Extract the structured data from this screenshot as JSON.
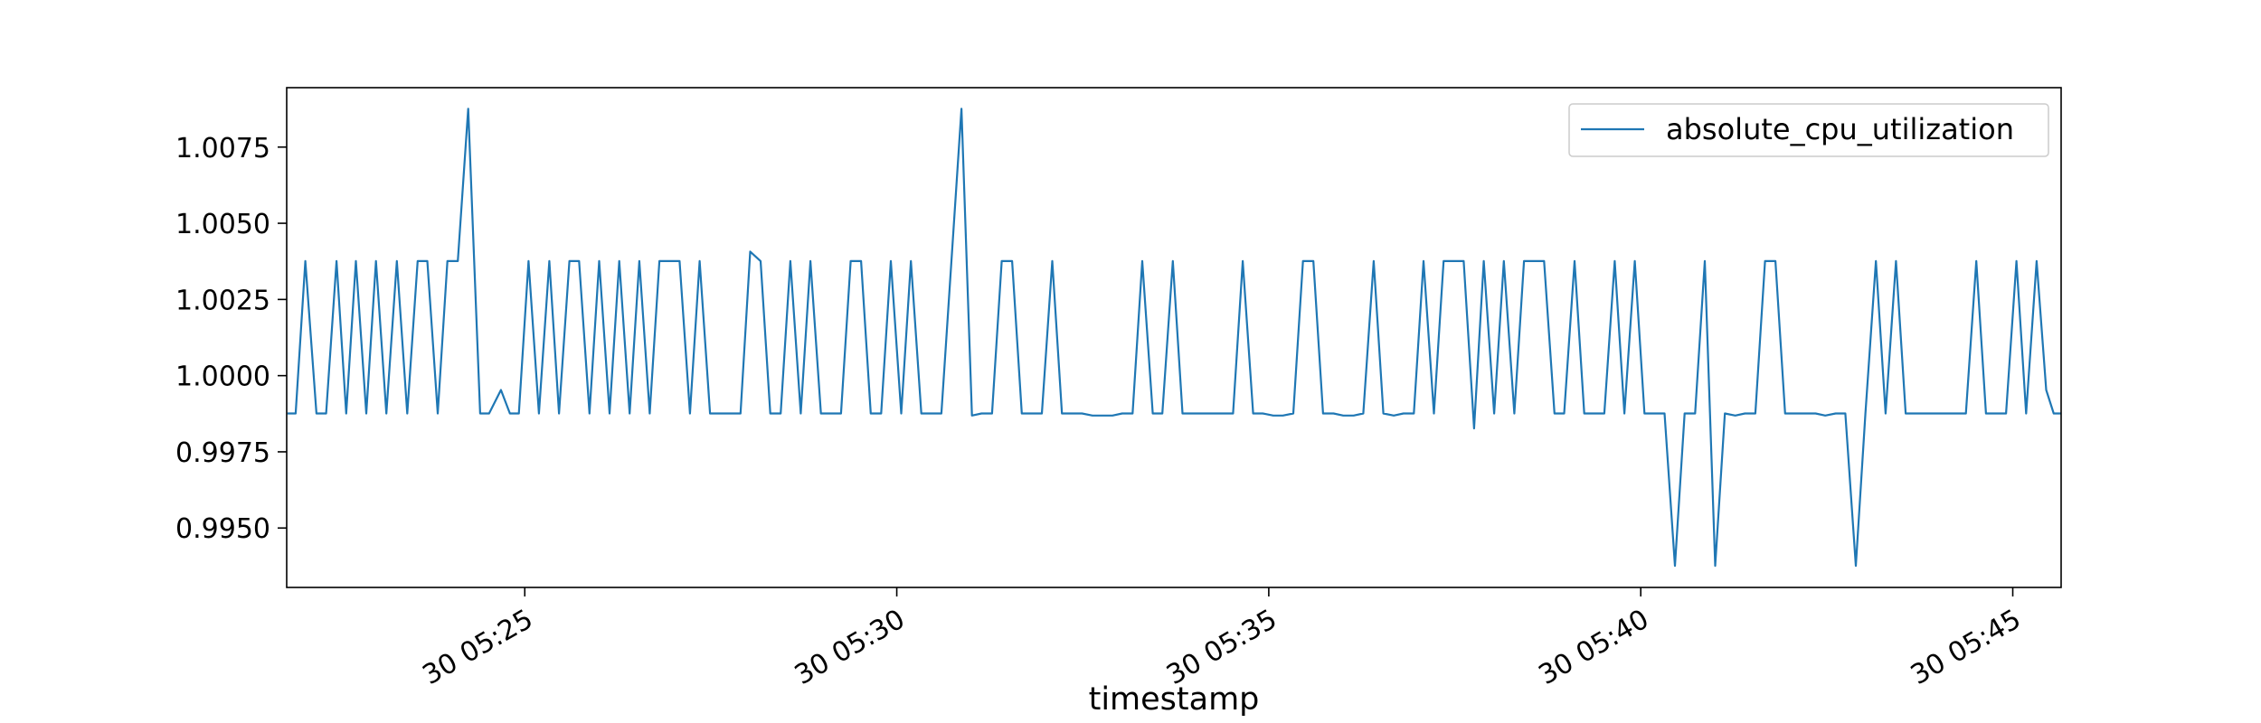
{
  "chart_data": {
    "type": "line",
    "title": "",
    "xlabel": "timestamp",
    "ylabel": "",
    "grid": false,
    "legend_position": "top-right",
    "x_tick_labels": [
      "30 05:25",
      "30 05:30",
      "30 05:35",
      "30 05:40",
      "30 05:45"
    ],
    "x_tick_minutes": [
      25,
      30,
      35,
      40,
      45
    ],
    "y_tick_labels": [
      "0.9950",
      "0.9975",
      "1.0000",
      "1.0025",
      "1.0050",
      "1.0075"
    ],
    "y_tick_values": [
      0.995,
      0.9975,
      1.0,
      1.0025,
      1.005,
      1.0075
    ],
    "xlim_minutes": [
      21.8,
      45.65
    ],
    "ylim": [
      0.99305,
      1.00945
    ],
    "series": [
      {
        "name": "absolute_cpu_utilization",
        "color": "#1f77b4",
        "points": [
          [
            21.81,
            0.99876
          ],
          [
            21.92,
            0.99876
          ],
          [
            22.05,
            1.00376
          ],
          [
            22.2,
            0.99876
          ],
          [
            22.33,
            0.99876
          ],
          [
            22.47,
            1.00376
          ],
          [
            22.6,
            0.99876
          ],
          [
            22.73,
            1.00376
          ],
          [
            22.87,
            0.99876
          ],
          [
            23.0,
            1.00376
          ],
          [
            23.14,
            0.99876
          ],
          [
            23.28,
            1.00376
          ],
          [
            23.42,
            0.99876
          ],
          [
            23.56,
            1.00376
          ],
          [
            23.69,
            1.00376
          ],
          [
            23.83,
            0.99876
          ],
          [
            23.96,
            1.00376
          ],
          [
            24.1,
            1.00376
          ],
          [
            24.24,
            1.00876
          ],
          [
            24.4,
            0.99876
          ],
          [
            24.52,
            0.99876
          ],
          [
            24.68,
            0.99953
          ],
          [
            24.8,
            0.99876
          ],
          [
            24.92,
            0.99876
          ],
          [
            25.05,
            1.00376
          ],
          [
            25.19,
            0.99876
          ],
          [
            25.33,
            1.00376
          ],
          [
            25.46,
            0.99876
          ],
          [
            25.6,
            1.00376
          ],
          [
            25.73,
            1.00376
          ],
          [
            25.87,
            0.99876
          ],
          [
            26.0,
            1.00376
          ],
          [
            26.14,
            0.99876
          ],
          [
            26.27,
            1.00376
          ],
          [
            26.41,
            0.99876
          ],
          [
            26.54,
            1.00376
          ],
          [
            26.68,
            0.99876
          ],
          [
            26.81,
            1.00376
          ],
          [
            26.95,
            1.00376
          ],
          [
            27.08,
            1.00376
          ],
          [
            27.22,
            0.99876
          ],
          [
            27.35,
            1.00376
          ],
          [
            27.49,
            0.99876
          ],
          [
            27.63,
            0.99876
          ],
          [
            27.76,
            0.99876
          ],
          [
            27.9,
            0.99876
          ],
          [
            28.03,
            1.00407
          ],
          [
            28.17,
            1.00376
          ],
          [
            28.3,
            0.99876
          ],
          [
            28.44,
            0.99876
          ],
          [
            28.57,
            1.00376
          ],
          [
            28.71,
            0.99876
          ],
          [
            28.84,
            1.00376
          ],
          [
            28.98,
            0.99876
          ],
          [
            29.11,
            0.99876
          ],
          [
            29.25,
            0.99876
          ],
          [
            29.38,
            1.00376
          ],
          [
            29.52,
            1.00376
          ],
          [
            29.65,
            0.99876
          ],
          [
            29.79,
            0.99876
          ],
          [
            29.92,
            1.00376
          ],
          [
            30.06,
            0.99876
          ],
          [
            30.19,
            1.00376
          ],
          [
            30.33,
            0.99876
          ],
          [
            30.46,
            0.99876
          ],
          [
            30.6,
            0.99876
          ],
          [
            30.87,
            1.00876
          ],
          [
            31.01,
            0.99869
          ],
          [
            31.14,
            0.99876
          ],
          [
            31.28,
            0.99876
          ],
          [
            31.41,
            1.00376
          ],
          [
            31.55,
            1.00376
          ],
          [
            31.68,
            0.99876
          ],
          [
            31.82,
            0.99876
          ],
          [
            31.95,
            0.99876
          ],
          [
            32.09,
            1.00376
          ],
          [
            32.22,
            0.99876
          ],
          [
            32.36,
            0.99876
          ],
          [
            32.49,
            0.99876
          ],
          [
            32.63,
            0.99869
          ],
          [
            32.76,
            0.99869
          ],
          [
            32.9,
            0.99869
          ],
          [
            33.03,
            0.99876
          ],
          [
            33.17,
            0.99876
          ],
          [
            33.3,
            1.00376
          ],
          [
            33.44,
            0.99876
          ],
          [
            33.57,
            0.99876
          ],
          [
            33.71,
            1.00376
          ],
          [
            33.84,
            0.99876
          ],
          [
            33.98,
            0.99876
          ],
          [
            34.11,
            0.99876
          ],
          [
            34.25,
            0.99876
          ],
          [
            34.38,
            0.99876
          ],
          [
            34.52,
            0.99876
          ],
          [
            34.65,
            1.00376
          ],
          [
            34.79,
            0.99876
          ],
          [
            34.92,
            0.99876
          ],
          [
            35.06,
            0.99869
          ],
          [
            35.19,
            0.99869
          ],
          [
            35.33,
            0.99876
          ],
          [
            35.46,
            1.00376
          ],
          [
            35.6,
            1.00376
          ],
          [
            35.73,
            0.99876
          ],
          [
            35.87,
            0.99876
          ],
          [
            36.0,
            0.99869
          ],
          [
            36.14,
            0.99869
          ],
          [
            36.27,
            0.99876
          ],
          [
            36.41,
            1.00376
          ],
          [
            36.54,
            0.99876
          ],
          [
            36.68,
            0.99869
          ],
          [
            36.81,
            0.99876
          ],
          [
            36.95,
            0.99876
          ],
          [
            37.08,
            1.00376
          ],
          [
            37.22,
            0.99876
          ],
          [
            37.35,
            1.00376
          ],
          [
            37.49,
            1.00376
          ],
          [
            37.62,
            1.00376
          ],
          [
            37.76,
            0.99827
          ],
          [
            37.89,
            1.00376
          ],
          [
            38.03,
            0.99876
          ],
          [
            38.16,
            1.00376
          ],
          [
            38.3,
            0.99876
          ],
          [
            38.43,
            1.00376
          ],
          [
            38.57,
            1.00376
          ],
          [
            38.7,
            1.00376
          ],
          [
            38.84,
            0.99876
          ],
          [
            38.97,
            0.99876
          ],
          [
            39.11,
            1.00376
          ],
          [
            39.24,
            0.99876
          ],
          [
            39.38,
            0.99876
          ],
          [
            39.51,
            0.99876
          ],
          [
            39.65,
            1.00376
          ],
          [
            39.78,
            0.99876
          ],
          [
            39.92,
            1.00376
          ],
          [
            40.05,
            0.99876
          ],
          [
            40.19,
            0.99876
          ],
          [
            40.32,
            0.99876
          ],
          [
            40.46,
            0.99376
          ],
          [
            40.59,
            0.99876
          ],
          [
            40.73,
            0.99876
          ],
          [
            40.86,
            1.00376
          ],
          [
            41.0,
            0.99376
          ],
          [
            41.13,
            0.99876
          ],
          [
            41.27,
            0.99869
          ],
          [
            41.4,
            0.99876
          ],
          [
            41.54,
            0.99876
          ],
          [
            41.67,
            1.00376
          ],
          [
            41.81,
            1.00376
          ],
          [
            41.94,
            0.99876
          ],
          [
            42.08,
            0.99876
          ],
          [
            42.21,
            0.99876
          ],
          [
            42.35,
            0.99876
          ],
          [
            42.48,
            0.99869
          ],
          [
            42.62,
            0.99876
          ],
          [
            42.75,
            0.99876
          ],
          [
            42.89,
            0.99376
          ],
          [
            43.02,
            0.99876
          ],
          [
            43.16,
            1.00376
          ],
          [
            43.29,
            0.99876
          ],
          [
            43.43,
            1.00376
          ],
          [
            43.56,
            0.99876
          ],
          [
            43.7,
            0.99876
          ],
          [
            43.83,
            0.99876
          ],
          [
            43.97,
            0.99876
          ],
          [
            44.1,
            0.99876
          ],
          [
            44.24,
            0.99876
          ],
          [
            44.37,
            0.99876
          ],
          [
            44.51,
            1.00376
          ],
          [
            44.64,
            0.99876
          ],
          [
            44.78,
            0.99876
          ],
          [
            44.91,
            0.99876
          ],
          [
            45.05,
            1.00376
          ],
          [
            45.18,
            0.99876
          ],
          [
            45.32,
            1.00376
          ],
          [
            45.45,
            0.99953
          ],
          [
            45.55,
            0.99876
          ],
          [
            45.65,
            0.99876
          ]
        ]
      }
    ]
  }
}
